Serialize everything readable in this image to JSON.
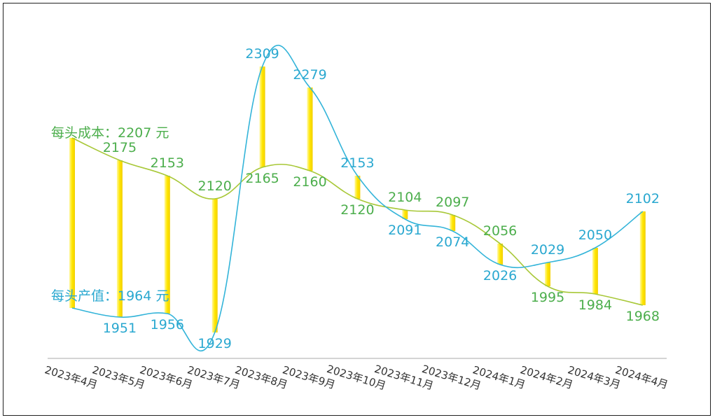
{
  "chart_data": {
    "type": "line",
    "categories": [
      "2023年4月",
      "2023年5月",
      "2023年6月",
      "2023年7月",
      "2023年8月",
      "2023年9月",
      "2023年10月",
      "2023年11月",
      "2023年12月",
      "2024年1月",
      "2024年2月",
      "2024年3月",
      "2024年4月"
    ],
    "series": [
      {
        "name": "每头成本",
        "unit": "元",
        "color": "#a8c838",
        "label_color": "#4cae4c",
        "values": [
          2207,
          2175,
          2153,
          2120,
          2165,
          2160,
          2120,
          2104,
          2097,
          2056,
          1995,
          1984,
          1968
        ]
      },
      {
        "name": "每头产值",
        "unit": "元",
        "color": "#33b4d9",
        "label_color": "#2aa8d0",
        "values": [
          1964,
          1951,
          1956,
          1929,
          2309,
          2279,
          2153,
          2091,
          2074,
          2026,
          2029,
          2050,
          2102
        ]
      }
    ],
    "series_labels": [
      "每头成本：2207 元",
      "每头产值：1964 元"
    ],
    "difference_bar_color": "#ffe600",
    "smooth": true,
    "grid": false,
    "ylim": [
      1880,
      2330
    ]
  }
}
